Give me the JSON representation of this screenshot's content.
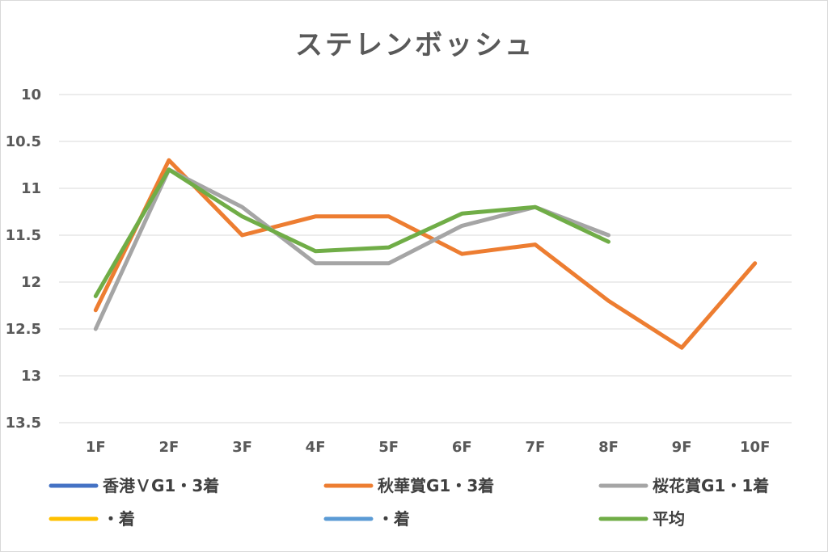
{
  "chart_data": {
    "type": "line",
    "title": "ステレンボッシュ",
    "categories": [
      "1F",
      "2F",
      "3F",
      "4F",
      "5F",
      "6F",
      "7F",
      "8F",
      "9F",
      "10F"
    ],
    "y_axis": {
      "inverted": true,
      "ylim": [
        10,
        13.5
      ],
      "ticks": [
        "10",
        "10.5",
        "11",
        "11.5",
        "12",
        "12.5",
        "13",
        "13.5"
      ],
      "grid": true
    },
    "legend_position": "bottom",
    "series": [
      {
        "name": "香港ＶG1・3着",
        "color": "#4472c4",
        "values": [
          null,
          null,
          null,
          null,
          null,
          null,
          null,
          null,
          null,
          null
        ]
      },
      {
        "name": "秋華賞G1・3着",
        "color": "#ed7d31",
        "values": [
          12.3,
          10.7,
          11.5,
          11.3,
          11.3,
          11.7,
          11.6,
          12.2,
          12.7,
          11.8
        ]
      },
      {
        "name": "桜花賞G1・1着",
        "color": "#a5a5a5",
        "values": [
          12.5,
          10.8,
          11.2,
          11.8,
          11.8,
          11.4,
          11.2,
          11.5,
          null,
          null
        ]
      },
      {
        "name": "・着",
        "color": "#ffc000",
        "values": [
          null,
          null,
          null,
          null,
          null,
          null,
          null,
          null,
          null,
          null
        ]
      },
      {
        "name": "・着",
        "color": "#5b9bd5",
        "values": [
          null,
          null,
          null,
          null,
          null,
          null,
          null,
          null,
          null,
          null
        ]
      },
      {
        "name": "平均",
        "color": "#70ad47",
        "values": [
          12.15,
          10.8,
          11.3,
          11.67,
          11.63,
          11.27,
          11.2,
          11.57,
          null,
          null
        ]
      }
    ]
  }
}
